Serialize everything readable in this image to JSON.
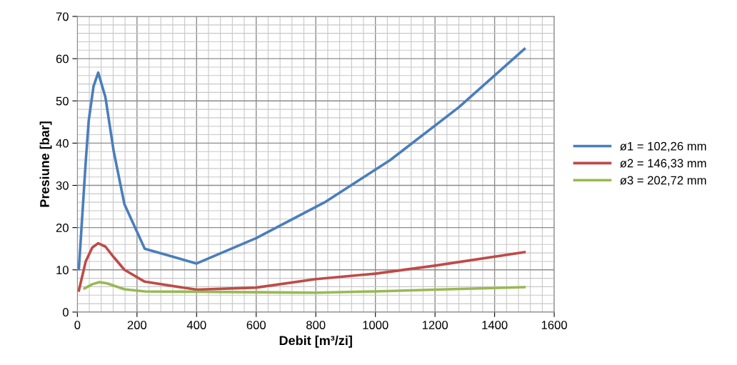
{
  "chart_data": {
    "type": "line",
    "xlabel": "Debit [m³/zi]",
    "ylabel": "Presiune [bar]",
    "xlim": [
      0,
      1600
    ],
    "xticks": [
      0,
      200,
      400,
      600,
      800,
      1000,
      1200,
      1400,
      1600
    ],
    "ylim": [
      0,
      70
    ],
    "yticks": [
      0,
      10,
      20,
      30,
      40,
      50,
      60,
      70
    ],
    "grid": true,
    "legend": "right",
    "marker": "none",
    "line_style": "solid",
    "series": [
      {
        "name": "ø1 = 102,26 mm",
        "color": "#4a7ebb",
        "x": [
          5,
          28,
          38,
          54,
          70,
          94,
          122,
          158,
          226,
          400,
          600,
          830,
          1050,
          1280,
          1500
        ],
        "values": [
          10.2,
          35.6,
          45.3,
          53.4,
          56.7,
          50.9,
          38,
          25.5,
          15,
          11.5,
          17.5,
          26,
          36,
          48.5,
          62.3
        ]
      },
      {
        "name": "ø2 = 146,33 mm",
        "color": "#be4b48",
        "x": [
          5,
          28,
          50,
          70,
          94,
          122,
          158,
          226,
          400,
          600,
          800,
          1000,
          1200,
          1500
        ],
        "values": [
          5.1,
          12,
          15.3,
          16.3,
          15.5,
          13,
          10,
          7.2,
          5.3,
          5.8,
          7.8,
          9.1,
          11,
          14.2
        ]
      },
      {
        "name": "ø3 = 202,72 mm",
        "color": "#98b954",
        "x": [
          24,
          50,
          74,
          100,
          158,
          226,
          400,
          600,
          800,
          1000,
          1200,
          1500
        ],
        "values": [
          5.6,
          6.6,
          7.1,
          6.8,
          5.4,
          4.9,
          4.8,
          4.7,
          4.6,
          4.9,
          5.3,
          5.9
        ]
      }
    ]
  }
}
